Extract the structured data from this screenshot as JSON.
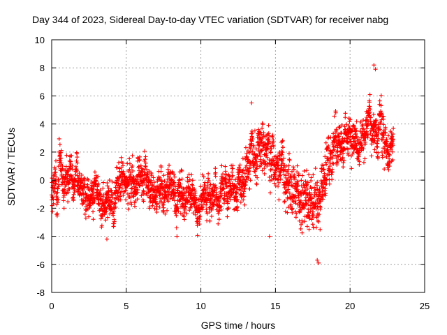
{
  "chart_data": {
    "type": "scatter",
    "title": "Day 344 of 2023, Sidereal Day-to-day VTEC variation (SDTVAR) for receiver nabg",
    "xlabel": "GPS time / hours",
    "ylabel": "SDTVAR / TECUs",
    "xlim": [
      0,
      25
    ],
    "ylim": [
      -8,
      10
    ],
    "xticks": [
      0,
      5,
      10,
      15,
      20,
      25
    ],
    "yticks": [
      -8,
      -6,
      -4,
      -2,
      0,
      2,
      4,
      6,
      8,
      10
    ],
    "grid": true,
    "marker": "+",
    "series_color": "#ff0000",
    "series": [
      {
        "name": "SDTVAR",
        "envelope_note": "hourly approximate centre and spread of dense point cloud",
        "x": [
          0.0,
          0.5,
          1.0,
          1.5,
          2.0,
          2.5,
          3.0,
          3.5,
          4.0,
          4.5,
          5.0,
          5.5,
          6.0,
          6.5,
          7.0,
          7.5,
          8.0,
          8.5,
          9.0,
          9.5,
          10.0,
          10.5,
          11.0,
          11.5,
          12.0,
          12.5,
          13.0,
          13.5,
          14.0,
          14.5,
          15.0,
          15.5,
          16.0,
          16.5,
          17.0,
          17.5,
          18.0,
          18.5,
          19.0,
          19.5,
          20.0,
          20.5,
          21.0,
          21.5,
          22.0,
          22.5,
          22.9
        ],
        "y": [
          -0.8,
          0.5,
          0.3,
          -0.3,
          -0.5,
          -0.9,
          -1.3,
          -1.5,
          -1.2,
          -0.6,
          -0.2,
          0.2,
          0.0,
          -0.6,
          -1.0,
          -0.9,
          -0.5,
          -1.0,
          -0.6,
          -0.8,
          -1.0,
          -0.9,
          -1.2,
          -1.0,
          -0.6,
          -0.4,
          0.8,
          1.6,
          2.5,
          2.3,
          1.8,
          0.5,
          -0.5,
          -1.2,
          -1.8,
          -2.2,
          -1.6,
          0.5,
          2.0,
          3.0,
          3.3,
          3.2,
          3.0,
          4.0,
          3.4,
          2.0,
          2.2
        ],
        "spread": [
          1.6,
          2.2,
          2.0,
          1.9,
          1.7,
          1.6,
          1.6,
          1.7,
          1.8,
          1.8,
          2.0,
          2.0,
          1.9,
          1.7,
          1.6,
          1.7,
          1.9,
          2.0,
          1.8,
          1.6,
          1.6,
          1.6,
          1.6,
          1.6,
          1.7,
          2.0,
          2.2,
          2.4,
          2.6,
          2.4,
          2.2,
          2.4,
          2.4,
          2.6,
          2.8,
          3.0,
          2.6,
          2.6,
          2.2,
          1.9,
          1.8,
          1.8,
          1.8,
          2.0,
          1.9,
          2.2,
          1.6
        ]
      }
    ],
    "notable_points": [
      {
        "x": 21.6,
        "y": 8.2
      },
      {
        "x": 21.7,
        "y": 7.9
      },
      {
        "x": 13.4,
        "y": 5.5
      },
      {
        "x": 17.9,
        "y": -5.9
      },
      {
        "x": 17.8,
        "y": -5.7
      },
      {
        "x": 3.7,
        "y": -4.2
      },
      {
        "x": 8.4,
        "y": -4.0
      },
      {
        "x": 14.6,
        "y": -4.0
      }
    ]
  }
}
